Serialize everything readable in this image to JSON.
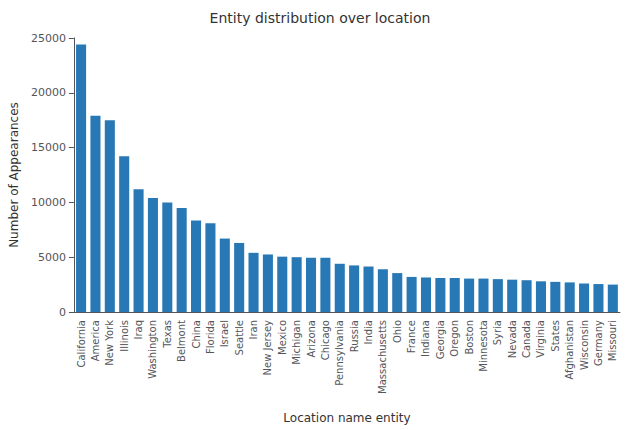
{
  "chart_data": {
    "type": "bar",
    "title": "Entity distribution over location",
    "xlabel": "Location name entity",
    "ylabel": "Number of Appearances",
    "categories": [
      "California",
      "America",
      "New York",
      "Illinois",
      "Iraq",
      "Washington",
      "Texas",
      "Belmont",
      "China",
      "Florida",
      "Israel",
      "Seattle",
      "Iran",
      "New Jersey",
      "Mexico",
      "Michigan",
      "Arizona",
      "Chicago",
      "Pennsylvania",
      "Russia",
      "India",
      "Massachusetts",
      "Ohio",
      "France",
      "Indiana",
      "Georgia",
      "Oregon",
      "Boston",
      "Minnesota",
      "Syria",
      "Nevada",
      "Canada",
      "Virginia",
      "States",
      "Afghanistan",
      "Wisconsin",
      "Germany",
      "Missouri"
    ],
    "values": [
      24400,
      17900,
      17500,
      14200,
      11200,
      10400,
      10000,
      9500,
      8350,
      8100,
      6700,
      6300,
      5400,
      5250,
      5050,
      5000,
      4950,
      4950,
      4400,
      4250,
      4150,
      3900,
      3550,
      3200,
      3150,
      3100,
      3100,
      3050,
      3050,
      3000,
      2950,
      2900,
      2800,
      2750,
      2700,
      2600,
      2550,
      2500
    ],
    "color": "#2878b5",
    "ylim": [
      0,
      25000
    ],
    "yticks": [
      0,
      5000,
      10000,
      15000,
      20000,
      25000
    ],
    "grid": false
  }
}
